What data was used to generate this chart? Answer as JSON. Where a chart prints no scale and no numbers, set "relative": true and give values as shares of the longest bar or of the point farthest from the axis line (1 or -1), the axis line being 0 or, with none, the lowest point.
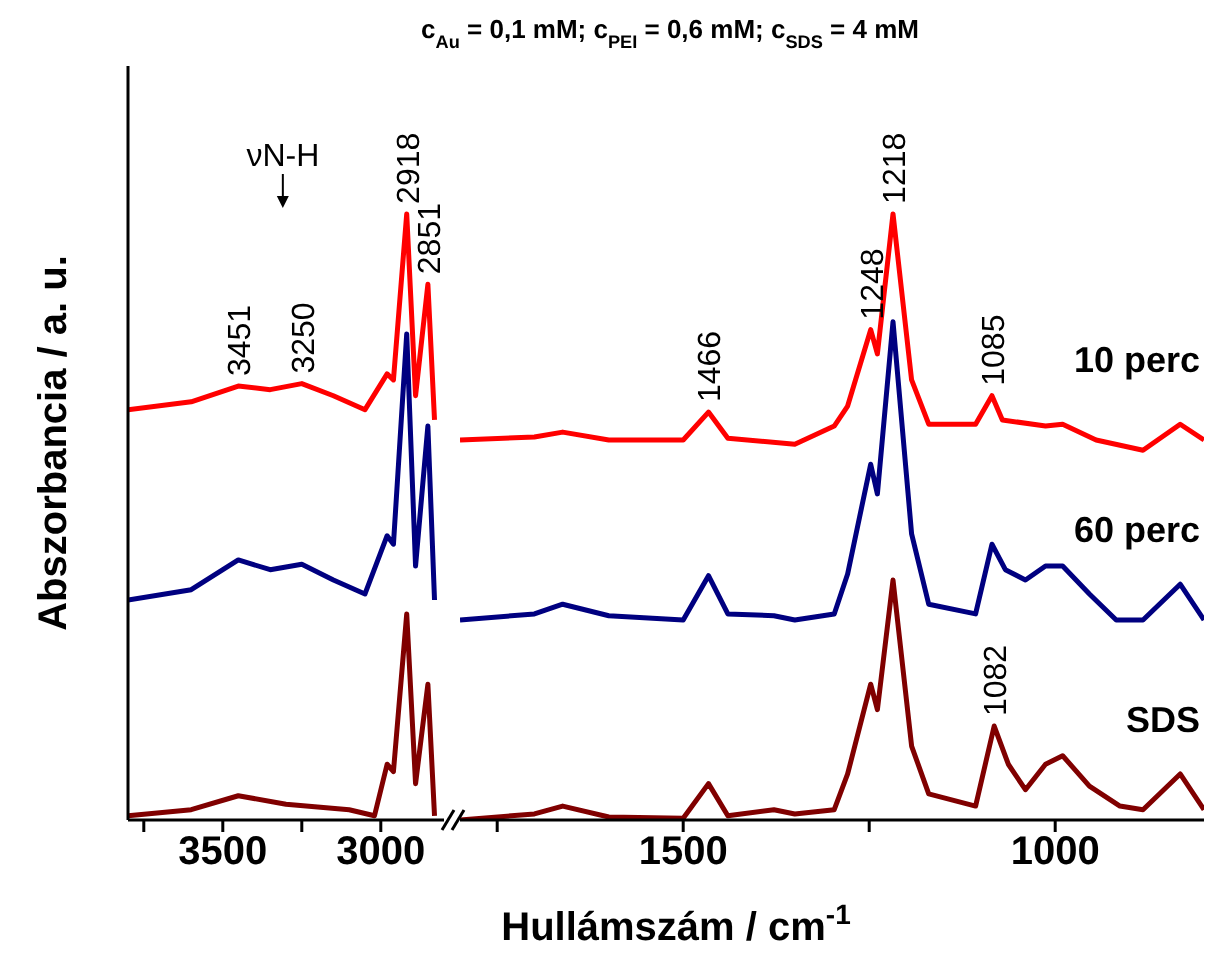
{
  "chart_data": [
    {
      "type": "line",
      "relative": true,
      "marker": "none",
      "xlim": [
        3800,
        2800
      ],
      "xticks": [
        {
          "value": 3750,
          "label": null
        },
        3500,
        {
          "value": 3250,
          "label": null
        },
        3000
      ],
      "ylabel": "Abszorbancia / a. u.",
      "annotations": [
        {
          "text": "3451",
          "x": 3451,
          "y": 0.716
        },
        {
          "text": "3250",
          "x": 3250,
          "y": 0.72
        },
        {
          "text": "2918",
          "x": 2918,
          "y": 1.0
        },
        {
          "text": "2851",
          "x": 2851,
          "y": 0.884
        },
        "νN-H"
      ],
      "series": [
        {
          "color": "#ff0000",
          "x": [
            3800,
            3600,
            3451,
            3350,
            3250,
            3150,
            3050,
            2980,
            2960,
            2918,
            2890,
            2851,
            2830
          ],
          "values": [
            0.677,
            0.69,
            0.716,
            0.71,
            0.72,
            0.7,
            0.677,
            0.736,
            0.726,
            1.0,
            0.7,
            0.884,
            0.66
          ]
        },
        {
          "color": "#000080",
          "x": [
            3800,
            3600,
            3451,
            3350,
            3250,
            3150,
            3050,
            2980,
            2960,
            2918,
            2890,
            2851,
            2830
          ],
          "values": [
            0.363,
            0.38,
            0.429,
            0.413,
            0.422,
            0.396,
            0.373,
            0.469,
            0.455,
            0.802,
            0.419,
            0.65,
            0.363
          ]
        },
        {
          "color": "#800000",
          "x": [
            3800,
            3600,
            3451,
            3300,
            3100,
            3020,
            2980,
            2960,
            2918,
            2890,
            2851,
            2830
          ],
          "values": [
            0.007,
            0.017,
            0.04,
            0.026,
            0.017,
            0.007,
            0.092,
            0.08,
            0.34,
            0.06,
            0.224,
            0.007
          ]
        }
      ]
    },
    {
      "type": "line",
      "relative": true,
      "marker": "none",
      "xlim": [
        1800,
        800
      ],
      "xticks": [
        {
          "value": 1750,
          "label": null
        },
        1500,
        {
          "value": 1250,
          "label": null
        },
        1000
      ],
      "title": "c$_{Au}$ = 0,1 mM; c$_{PEI}$ = 0,6 mM; c$_{SDS}$ = 4 mM",
      "xlabel": "Hullámszám / cm$^{-1}$",
      "annotations": [
        {
          "text": "1466",
          "x": 1466,
          "y": 0.673
        },
        {
          "text": "1248",
          "x": 1248,
          "y": 0.809
        },
        {
          "text": "1218",
          "x": 1218,
          "y": 1.0
        },
        {
          "text": "1085",
          "x": 1085,
          "y": 0.7
        },
        {
          "text": "1082",
          "x": 1082,
          "y": 0.155
        }
      ],
      "series": [
        {
          "name": "10 perc",
          "color": "#ff0000",
          "x": [
            1800,
            1700,
            1662,
            1600,
            1500,
            1466,
            1440,
            1350,
            1297,
            1279,
            1248,
            1239,
            1218,
            1193,
            1170,
            1107,
            1085,
            1071,
            1013,
            990,
            945,
            882,
            832,
            800
          ],
          "values": [
            0.627,
            0.632,
            0.64,
            0.627,
            0.627,
            0.673,
            0.63,
            0.62,
            0.65,
            0.683,
            0.809,
            0.769,
            1.0,
            0.726,
            0.653,
            0.653,
            0.7,
            0.66,
            0.65,
            0.653,
            0.627,
            0.61,
            0.653,
            0.627
          ]
        },
        {
          "name": "60 perc",
          "color": "#000080",
          "x": [
            1800,
            1700,
            1662,
            1600,
            1500,
            1466,
            1440,
            1378,
            1350,
            1297,
            1279,
            1248,
            1239,
            1218,
            1193,
            1170,
            1107,
            1085,
            1067,
            1040,
            1013,
            990,
            954,
            918,
            882,
            832,
            800
          ],
          "values": [
            0.33,
            0.34,
            0.356,
            0.337,
            0.33,
            0.403,
            0.34,
            0.337,
            0.33,
            0.34,
            0.406,
            0.587,
            0.538,
            0.822,
            0.472,
            0.356,
            0.34,
            0.455,
            0.413,
            0.396,
            0.419,
            0.419,
            0.373,
            0.33,
            0.33,
            0.389,
            0.33
          ]
        },
        {
          "name": "SDS",
          "color": "#800000",
          "x": [
            1800,
            1700,
            1662,
            1600,
            1500,
            1466,
            1440,
            1378,
            1350,
            1297,
            1279,
            1248,
            1239,
            1218,
            1193,
            1170,
            1107,
            1082,
            1063,
            1040,
            1013,
            990,
            954,
            913,
            882,
            832,
            800
          ],
          "values": [
            0.0,
            0.01,
            0.023,
            0.005,
            0.003,
            0.06,
            0.007,
            0.017,
            0.01,
            0.017,
            0.076,
            0.224,
            0.182,
            0.396,
            0.122,
            0.043,
            0.023,
            0.155,
            0.092,
            0.05,
            0.092,
            0.106,
            0.056,
            0.023,
            0.017,
            0.076,
            0.017
          ]
        }
      ]
    }
  ]
}
